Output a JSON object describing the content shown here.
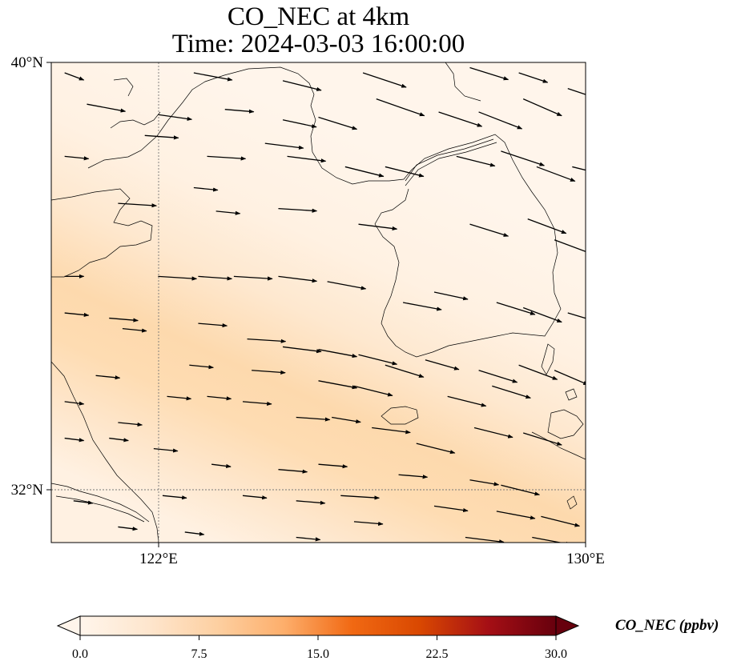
{
  "title": {
    "line1": "CO_NEC at 4km",
    "line2": "Time: 2024-03-03 16:00:00"
  },
  "map": {
    "lon_range": [
      118,
      130
    ],
    "lat_range": [
      30.8,
      40
    ],
    "lat_ticks": [
      {
        "value": 40,
        "label": "40°N"
      },
      {
        "value": 32,
        "label": "32°N"
      }
    ],
    "lon_ticks": [
      {
        "value": 122,
        "label": "122°E"
      },
      {
        "value": 130,
        "label": "130°E"
      }
    ],
    "gridlines": true,
    "field_colors": {
      "low": "#fff5eb",
      "mid": "#fdd9a9",
      "band": "#fdd49e"
    }
  },
  "colorbar": {
    "label": "CO_NEC (ppbv)",
    "min": 0,
    "max": 30,
    "ticks": [
      {
        "value": 0,
        "label": "0.0"
      },
      {
        "value": 7.5,
        "label": "7.5"
      },
      {
        "value": 15,
        "label": "15.0"
      },
      {
        "value": 22.5,
        "label": "22.5"
      },
      {
        "value": 30,
        "label": "30.0"
      }
    ],
    "colors": [
      "#fff5eb",
      "#fee6ce",
      "#fdd0a2",
      "#fdae6b",
      "#f16913",
      "#d94801",
      "#a50f15",
      "#67000d"
    ]
  },
  "wind_vectors": [
    [
      118.3,
      39.8,
      0.4,
      -0.15
    ],
    [
      121.2,
      39.8,
      0.8,
      -0.15
    ],
    [
      123.2,
      39.65,
      0.8,
      -0.2
    ],
    [
      125.0,
      39.8,
      0.9,
      -0.3
    ],
    [
      127.4,
      39.9,
      0.8,
      -0.25
    ],
    [
      128.5,
      39.8,
      0.6,
      -0.2
    ],
    [
      118.8,
      39.2,
      0.8,
      -0.15
    ],
    [
      120.4,
      39.0,
      0.7,
      -0.1
    ],
    [
      121.9,
      39.1,
      0.6,
      -0.05
    ],
    [
      123.2,
      38.9,
      0.7,
      -0.15
    ],
    [
      124.0,
      38.95,
      0.8,
      -0.25
    ],
    [
      125.3,
      39.3,
      1.0,
      -0.35
    ],
    [
      126.7,
      39.05,
      0.9,
      -0.3
    ],
    [
      127.6,
      39.05,
      0.9,
      -0.35
    ],
    [
      128.6,
      39.3,
      0.8,
      -0.35
    ],
    [
      129.6,
      39.5,
      0.6,
      -0.2
    ],
    [
      118.3,
      38.2,
      0.5,
      -0.05
    ],
    [
      120.1,
      38.6,
      0.7,
      -0.05
    ],
    [
      121.5,
      38.2,
      0.8,
      -0.05
    ],
    [
      122.8,
      38.45,
      0.8,
      -0.1
    ],
    [
      123.3,
      38.2,
      0.8,
      -0.1
    ],
    [
      124.6,
      38.0,
      0.8,
      -0.2
    ],
    [
      125.5,
      38.0,
      0.8,
      -0.2
    ],
    [
      127.1,
      38.2,
      0.8,
      -0.2
    ],
    [
      128.1,
      38.3,
      0.9,
      -0.3
    ],
    [
      128.9,
      38.0,
      0.8,
      -0.3
    ],
    [
      129.7,
      38.0,
      0.4,
      -0.1
    ],
    [
      119.5,
      37.3,
      0.8,
      -0.05
    ],
    [
      121.2,
      37.6,
      0.5,
      -0.05
    ],
    [
      121.7,
      37.15,
      0.5,
      -0.05
    ],
    [
      123.1,
      37.2,
      0.8,
      -0.05
    ],
    [
      124.9,
      36.9,
      0.8,
      -0.1
    ],
    [
      127.4,
      36.9,
      0.8,
      -0.25
    ],
    [
      128.7,
      37.0,
      0.8,
      -0.3
    ],
    [
      129.3,
      36.6,
      0.8,
      -0.3
    ],
    [
      118.3,
      35.9,
      0.4,
      0
    ],
    [
      120.4,
      35.9,
      0.8,
      -0.05
    ],
    [
      121.3,
      35.9,
      0.7,
      -0.05
    ],
    [
      122.1,
      35.9,
      0.8,
      -0.05
    ],
    [
      123.1,
      35.9,
      0.8,
      -0.1
    ],
    [
      124.2,
      35.8,
      0.8,
      -0.15
    ],
    [
      125.9,
      35.4,
      0.8,
      -0.15
    ],
    [
      126.6,
      35.6,
      0.7,
      -0.15
    ],
    [
      128.0,
      35.4,
      0.8,
      -0.25
    ],
    [
      128.6,
      35.3,
      0.8,
      -0.3
    ],
    [
      129.6,
      35.2,
      0.5,
      -0.15
    ],
    [
      118.3,
      35.2,
      0.5,
      -0.05
    ],
    [
      119.3,
      35.1,
      0.6,
      -0.05
    ],
    [
      119.6,
      34.9,
      0.5,
      -0.05
    ],
    [
      121.3,
      35.0,
      0.6,
      -0.05
    ],
    [
      122.4,
      34.7,
      0.8,
      -0.05
    ],
    [
      123.2,
      34.55,
      0.8,
      -0.1
    ],
    [
      124.0,
      34.5,
      0.8,
      -0.15
    ],
    [
      124.9,
      34.4,
      0.8,
      -0.2
    ],
    [
      125.5,
      34.2,
      0.8,
      -0.25
    ],
    [
      126.4,
      34.3,
      0.7,
      -0.2
    ],
    [
      127.6,
      34.1,
      0.8,
      -0.25
    ],
    [
      128.5,
      34.2,
      0.8,
      -0.3
    ],
    [
      129.3,
      34.1,
      0.7,
      -0.3
    ],
    [
      119.0,
      34.0,
      0.5,
      -0.05
    ],
    [
      121.1,
      34.2,
      0.5,
      -0.05
    ],
    [
      122.5,
      34.1,
      0.7,
      -0.05
    ],
    [
      124.0,
      33.9,
      0.8,
      -0.15
    ],
    [
      124.8,
      33.8,
      0.8,
      -0.2
    ],
    [
      126.9,
      33.6,
      0.8,
      -0.2
    ],
    [
      127.9,
      33.8,
      0.8,
      -0.25
    ],
    [
      118.3,
      33.5,
      0.4,
      -0.05
    ],
    [
      119.5,
      33.1,
      0.5,
      -0.05
    ],
    [
      120.6,
      33.6,
      0.5,
      -0.05
    ],
    [
      121.5,
      33.6,
      0.5,
      -0.05
    ],
    [
      122.3,
      33.5,
      0.6,
      -0.05
    ],
    [
      123.5,
      33.2,
      0.7,
      -0.05
    ],
    [
      124.3,
      33.2,
      0.6,
      -0.1
    ],
    [
      125.2,
      33.0,
      0.8,
      -0.1
    ],
    [
      126.2,
      32.7,
      0.8,
      -0.2
    ],
    [
      127.5,
      33.0,
      0.8,
      -0.2
    ],
    [
      128.6,
      32.9,
      0.8,
      -0.25
    ],
    [
      118.3,
      32.8,
      0.4,
      -0.05
    ],
    [
      119.3,
      32.8,
      0.4,
      -0.05
    ],
    [
      120.3,
      32.6,
      0.5,
      -0.05
    ],
    [
      121.6,
      32.3,
      0.4,
      -0.05
    ],
    [
      123.1,
      32.2,
      0.6,
      -0.05
    ],
    [
      124.0,
      32.3,
      0.6,
      -0.05
    ],
    [
      125.8,
      32.1,
      0.6,
      -0.05
    ],
    [
      127.4,
      32.0,
      0.6,
      -0.1
    ],
    [
      128.1,
      31.9,
      0.8,
      -0.2
    ],
    [
      118.5,
      31.6,
      0.4,
      -0.05
    ],
    [
      120.5,
      31.7,
      0.5,
      -0.05
    ],
    [
      122.3,
      31.7,
      0.5,
      -0.05
    ],
    [
      123.5,
      31.6,
      0.6,
      -0.05
    ],
    [
      124.5,
      31.7,
      0.8,
      -0.05
    ],
    [
      126.6,
      31.5,
      0.7,
      -0.1
    ],
    [
      128.0,
      31.4,
      0.8,
      -0.15
    ],
    [
      129.0,
      31.3,
      0.8,
      -0.2
    ],
    [
      119.5,
      31.1,
      0.4,
      -0.05
    ],
    [
      121.0,
      31.0,
      0.4,
      -0.05
    ],
    [
      123.5,
      30.9,
      0.5,
      -0.05
    ],
    [
      124.8,
      31.2,
      0.6,
      -0.05
    ],
    [
      127.3,
      30.9,
      0.8,
      -0.1
    ],
    [
      128.8,
      30.9,
      0.8,
      -0.15
    ]
  ]
}
